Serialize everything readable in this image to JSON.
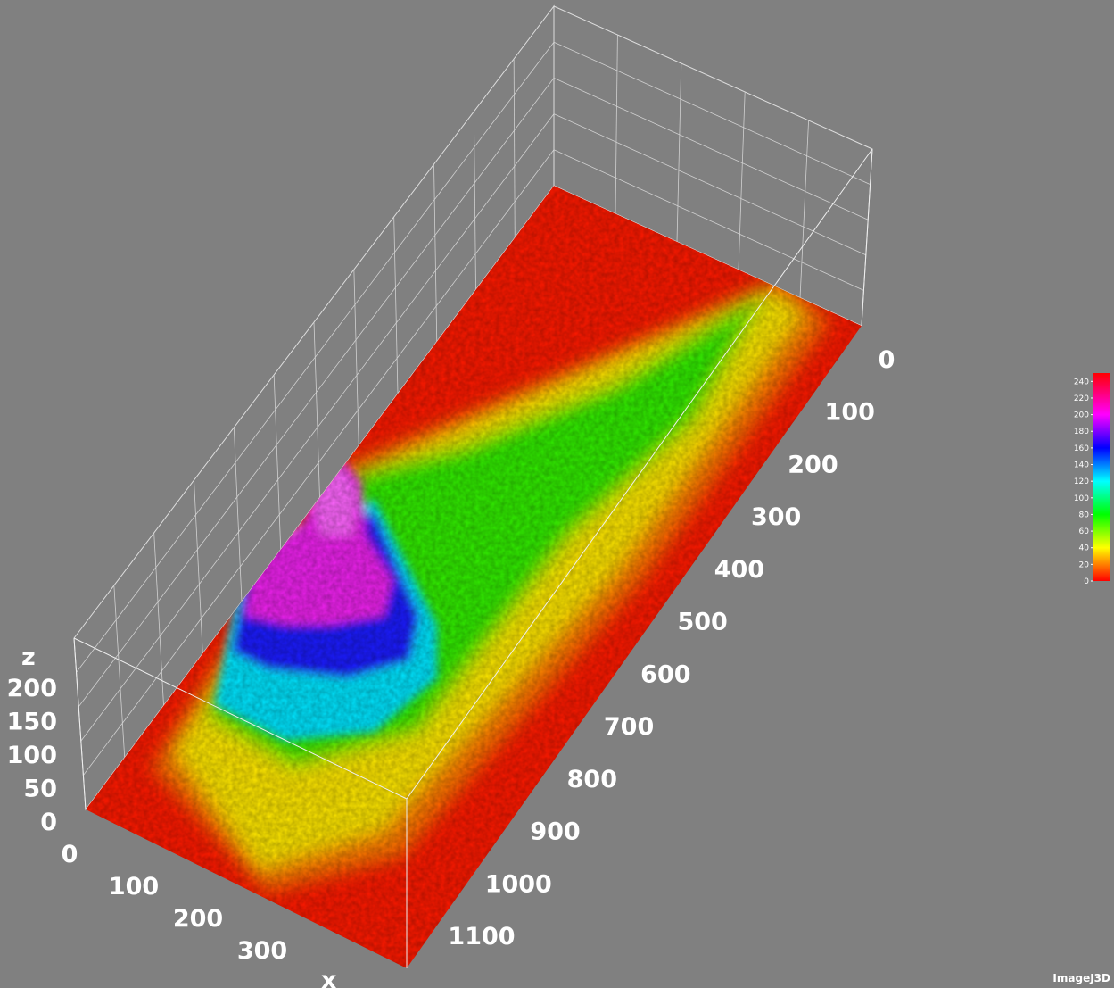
{
  "chart_data": {
    "type": "surface3d",
    "x_axis": {
      "label": "x",
      "ticks": [
        "0",
        "100",
        "200",
        "300"
      ]
    },
    "y_axis": {
      "label": "",
      "ticks": [
        "0",
        "100",
        "200",
        "300",
        "400",
        "500",
        "600",
        "700",
        "800",
        "900",
        "1000",
        "1100"
      ]
    },
    "z_axis": {
      "label": "z",
      "ticks": [
        "0",
        "50",
        "100",
        "150",
        "200"
      ]
    },
    "colorbar": {
      "ticks": [
        "0",
        "20",
        "40",
        "60",
        "80",
        "100",
        "120",
        "140",
        "160",
        "180",
        "200",
        "220",
        "240"
      ],
      "range": [
        0,
        250
      ],
      "stops": [
        {
          "value": 0,
          "color": "#ff0000"
        },
        {
          "value": 40,
          "color": "#ffff00"
        },
        {
          "value": 80,
          "color": "#00ff00"
        },
        {
          "value": 120,
          "color": "#00ffff"
        },
        {
          "value": 160,
          "color": "#0000ff"
        },
        {
          "value": 200,
          "color": "#ff00ff"
        },
        {
          "value": 250,
          "color": "#ff0000"
        }
      ]
    },
    "surface_regions": [
      {
        "name": "background",
        "value": 0
      },
      {
        "name": "yellow-rim",
        "value": 40
      },
      {
        "name": "green-plateau",
        "value": 80
      },
      {
        "name": "cyan-band",
        "value": 120
      },
      {
        "name": "blue-band",
        "value": 165
      },
      {
        "name": "magenta-peak",
        "value": 210
      }
    ],
    "grid": true
  },
  "watermark": "ImageJ3D",
  "colors": {
    "background": "#808080",
    "gridline": "#dddddd"
  }
}
